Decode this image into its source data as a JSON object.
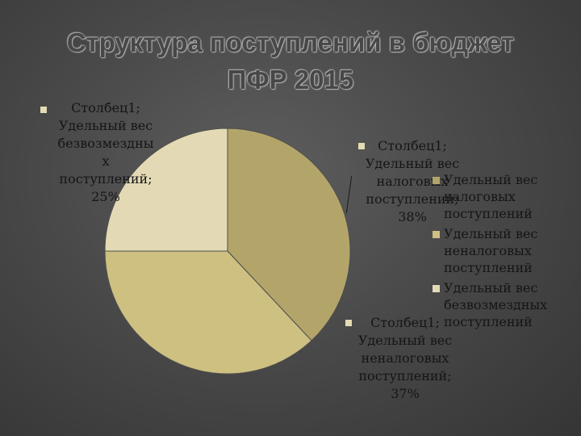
{
  "chart_data": {
    "type": "pie",
    "title": [
      "Структура поступлений в бюджет",
      "ПФР 2015"
    ],
    "series_name": "Столбец1",
    "slices": [
      {
        "name": [
          "Удельный вес",
          "налоговых",
          "поступлений"
        ],
        "value": 38,
        "color": "#b3a56a"
      },
      {
        "name": [
          "Удельный вес",
          "неналоговых",
          "поступлений"
        ],
        "value": 37,
        "color": "#cdc081"
      },
      {
        "name": [
          "Удельный вес",
          "безвозмездных",
          "поступлений"
        ],
        "value": 25,
        "color": "#e3dab5"
      }
    ],
    "data_labels": [
      [
        "Столбец1;",
        "Удельный вес",
        "налоговых",
        "поступлений;",
        "38%"
      ],
      [
        "Столбец1;",
        "Удельный вес",
        "неналоговых",
        "поступлений;",
        "37%"
      ],
      [
        "Столбец1;",
        "Удельный вес",
        "безвозмездны",
        "х",
        "поступлений;",
        "25%"
      ]
    ],
    "legend_position": "right"
  }
}
